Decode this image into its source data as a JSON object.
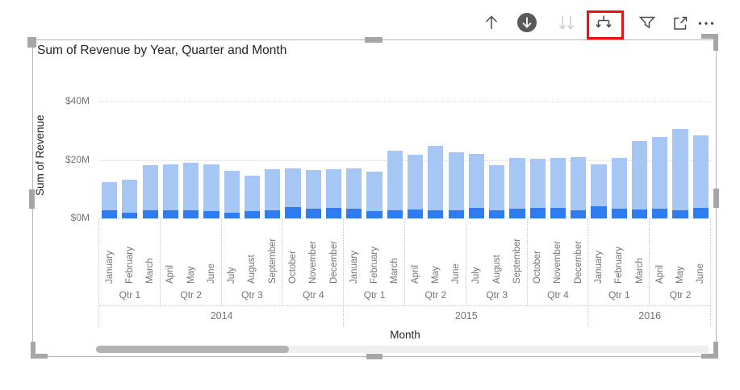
{
  "toolbar": {
    "icons": [
      {
        "name": "drill-up",
        "tooltip": "Drill up",
        "state": "enabled"
      },
      {
        "name": "drill-down",
        "tooltip": "Click to turn off drill down",
        "state": "active"
      },
      {
        "name": "go-to-next-level",
        "tooltip": "Go to the next level in the hierarchy",
        "state": "disabled"
      },
      {
        "name": "expand-all-down",
        "tooltip": "Expand all down one level in the hierarchy",
        "state": "enabled",
        "highlighted": true
      },
      {
        "name": "filter",
        "tooltip": "Filters",
        "state": "enabled"
      },
      {
        "name": "focus-mode",
        "tooltip": "Focus mode",
        "state": "enabled"
      },
      {
        "name": "more-options",
        "tooltip": "More options",
        "state": "enabled"
      }
    ]
  },
  "annotation": {
    "highlight_color": "#ee1111",
    "highlighted_icon": "expand-all-down"
  },
  "visual": {
    "selected": true
  },
  "scrollbar": {
    "orientation": "horizontal",
    "thumb_start_pct": 0,
    "thumb_width_pct": 31.5
  },
  "chart_data": {
    "type": "bar",
    "title": "Sum of Revenue by Year, Quarter and Month",
    "xlabel": "Month",
    "ylabel": "Sum of Revenue",
    "ylim": [
      0,
      40
    ],
    "value_unit": "$M",
    "grid": "dotted horizontal gridlines",
    "legend": "none",
    "y_ticks": [
      {
        "label": "$0M",
        "value": 0
      },
      {
        "label": "$20M",
        "value": 20
      },
      {
        "label": "$40M",
        "value": 40
      }
    ],
    "bar_colors": {
      "light": "#a6c7f4",
      "dark": "#2e7cf0"
    },
    "series_note": "Each column = total monthly revenue (light blue) with darker blue base segment at bottom",
    "years": [
      {
        "label": "2014",
        "quarters": [
          {
            "label": "Qtr 1",
            "months": [
              "January",
              "February",
              "March"
            ],
            "totals": [
              12.5,
              13.3,
              18.3
            ],
            "base": [
              2.9,
              2.0,
              2.9
            ]
          },
          {
            "label": "Qtr 2",
            "months": [
              "April",
              "May",
              "June"
            ],
            "totals": [
              18.4,
              19.1,
              18.4
            ],
            "base": [
              2.8,
              2.8,
              2.4
            ]
          },
          {
            "label": "Qtr 3",
            "months": [
              "July",
              "August",
              "September"
            ],
            "totals": [
              16.2,
              14.5,
              16.8
            ],
            "base": [
              2.0,
              2.4,
              2.9
            ]
          },
          {
            "label": "Qtr 4",
            "months": [
              "October",
              "November",
              "December"
            ],
            "totals": [
              17.0,
              16.6,
              16.8
            ],
            "base": [
              3.9,
              3.3,
              3.5
            ]
          }
        ]
      },
      {
        "label": "2015",
        "quarters": [
          {
            "label": "Qtr 1",
            "months": [
              "January",
              "February",
              "March"
            ],
            "totals": [
              17.1,
              16.1,
              23.3
            ],
            "base": [
              3.3,
              2.4,
              2.9
            ]
          },
          {
            "label": "Qtr 2",
            "months": [
              "April",
              "May",
              "June"
            ],
            "totals": [
              21.7,
              24.7,
              22.5
            ],
            "base": [
              3.1,
              2.9,
              2.9
            ]
          },
          {
            "label": "Qtr 3",
            "months": [
              "July",
              "August",
              "September"
            ],
            "totals": [
              22.2,
              18.2,
              20.6
            ],
            "base": [
              3.7,
              2.9,
              3.3
            ]
          },
          {
            "label": "Qtr 4",
            "months": [
              "October",
              "November",
              "December"
            ],
            "totals": [
              20.4,
              20.6,
              21.0
            ],
            "base": [
              3.5,
              3.5,
              2.9
            ]
          }
        ]
      },
      {
        "label": "2016",
        "quarters": [
          {
            "label": "Qtr 1",
            "months": [
              "January",
              "February",
              "March"
            ],
            "totals": [
              18.5,
              20.8,
              26.6
            ],
            "base": [
              4.2,
              3.3,
              3.1
            ]
          },
          {
            "label": "Qtr 2",
            "months": [
              "April",
              "May",
              "June"
            ],
            "totals": [
              27.8,
              30.7,
              28.3
            ],
            "base": [
              3.3,
              2.9,
              3.5
            ]
          }
        ]
      }
    ]
  }
}
